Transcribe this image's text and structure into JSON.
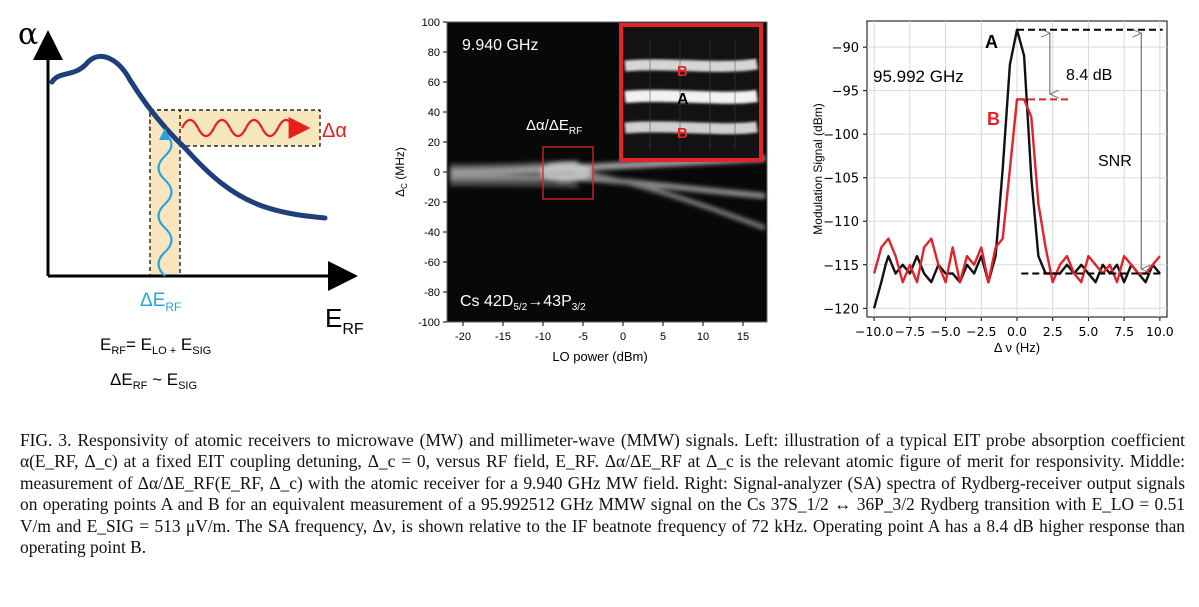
{
  "left_panel": {
    "y_axis_label": "α",
    "x_axis_label": "E",
    "x_axis_sub": "RF",
    "delta_alpha": "Δα",
    "delta_e": "ΔE",
    "delta_e_sub": "RF",
    "eq1": {
      "a": "E",
      "a_sub": "RF",
      "b": "= E",
      "b_sub": "LO +",
      "c": " E",
      "c_sub": "SIG"
    },
    "eq2": {
      "a": "ΔE",
      "a_sub": "RF",
      "b": " ~ E",
      "b_sub": "SIG"
    },
    "colors": {
      "curve": "#1f3f7a",
      "wave_out": "#e8201c",
      "wave_in": "#29a3dc",
      "box_fill": "#f8e6bf"
    }
  },
  "middle_panel": {
    "freq_label": "9.940 GHz",
    "ylabel": "Δ",
    "ylabel_sub": "C",
    "ylabel_unit": " (MHz)",
    "xlabel": "LO power (dBm)",
    "yticks": [
      "100",
      "80",
      "60",
      "40",
      "20",
      "0",
      "-20",
      "-40",
      "-60",
      "-80",
      "-100"
    ],
    "xticks": [
      "-20",
      "-15",
      "-10",
      "-5",
      "0",
      "5",
      "10",
      "15"
    ],
    "annotation": "Δα/ΔE",
    "annotation_sub": "RF",
    "inset_labels": [
      "B",
      "A",
      "B"
    ],
    "transition": {
      "a": "Cs 42D",
      "a_sub": "5/2",
      "arrow": "→",
      "b": "43P",
      "b_sub": "3/2"
    },
    "colors": {
      "inset_border": "#e0242a",
      "label_b": "#e0242a"
    }
  },
  "chart_data": {
    "type": "line",
    "title": "",
    "xlabel": "Δ ν (Hz)",
    "ylabel": "Modulation Signal (dBm)",
    "xlim": [
      -10.5,
      10.5
    ],
    "ylim": [
      -121,
      -87
    ],
    "xticks": [
      "−10.0",
      "−7.5",
      "−5.0",
      "−2.5",
      "0.0",
      "2.5",
      "5.0",
      "7.5",
      "10.0"
    ],
    "yticks": [
      "−90",
      "−95",
      "−100",
      "−105",
      "−110",
      "−115",
      "−120"
    ],
    "xtick_values": [
      -10,
      -7.5,
      -5,
      -2.5,
      0,
      2.5,
      5,
      7.5,
      10
    ],
    "ytick_values": [
      -90,
      -95,
      -100,
      -105,
      -110,
      -115,
      -120
    ],
    "grid": true,
    "freq_label": "95.992 GHz",
    "point_a": "A",
    "point_b": "B",
    "delta_label": "8.4 dB",
    "snr_label": "SNR",
    "series": [
      {
        "color": "#111111",
        "x": [
          -10,
          -9.5,
          -9.2,
          -9,
          -8.5,
          -8,
          -7.5,
          -7,
          -6.5,
          -6,
          -5.5,
          -5,
          -4.5,
          -4,
          -3.5,
          -3,
          -2.5,
          -2,
          -1.5,
          -1,
          -0.5,
          0,
          0.5,
          1,
          1.5,
          2,
          2.5,
          3,
          3.5,
          4,
          4.5,
          5,
          5.5,
          6,
          6.5,
          7,
          7.5,
          8,
          8.5,
          9,
          9.5,
          10
        ],
        "y": [
          -120,
          -117,
          -115,
          -114,
          -116,
          -115,
          -116,
          -114,
          -116,
          -117,
          -115,
          -116,
          -116,
          -117,
          -115,
          -116,
          -114,
          -117,
          -114,
          -104,
          -92,
          -88,
          -91,
          -105,
          -114,
          -116,
          -116,
          -116,
          -115,
          -116,
          -115,
          -116,
          -117,
          -115,
          -116,
          -115,
          -117,
          -115,
          -116,
          -117,
          -115,
          -116
        ]
      },
      {
        "color": "#e0242a",
        "x": [
          -10,
          -9.5,
          -9,
          -8.5,
          -8,
          -7.5,
          -7,
          -6.5,
          -6,
          -5.5,
          -5,
          -4.5,
          -4,
          -3.5,
          -3,
          -2.5,
          -2,
          -1.5,
          -1,
          -0.5,
          0,
          0.5,
          1,
          1.5,
          2,
          2.5,
          3,
          3.5,
          4,
          4.5,
          5,
          5.5,
          6,
          6.5,
          7,
          7.5,
          8,
          8.5,
          9,
          9.5,
          10
        ],
        "y": [
          -116,
          -113,
          -112,
          -114,
          -117,
          -115,
          -117,
          -113,
          -112,
          -115,
          -117,
          -113,
          -117,
          -114,
          -115,
          -113,
          -117,
          -113,
          -112,
          -104,
          -96,
          -96,
          -98,
          -108,
          -113,
          -117,
          -115,
          -114,
          -116,
          -117,
          -114,
          -115,
          -116,
          -115,
          -117,
          -114,
          -115,
          -116,
          -116,
          -115,
          -114
        ]
      }
    ],
    "colors": {
      "a": "#111111",
      "b": "#e0242a"
    }
  },
  "caption": {
    "label": "FIG. 3.",
    "text": "Responsivity of atomic receivers to microwave (MW) and millimeter-wave (MMW) signals. Left: illustration of a typical EIT probe absorption coefficient α(E_RF, Δ_c) at a fixed EIT coupling detuning, Δ_c = 0, versus RF field, E_RF.  Δα/ΔE_RF at Δ_c is the relevant atomic figure of merit for responsivity. Middle: measurement of Δα/ΔE_RF(E_RF, Δ_c) with the atomic receiver for a 9.940 GHz MW field. Right: Signal-analyzer (SA) spectra of Rydberg-receiver output signals on operating points A and B for an equivalent measurement of a  95.992512 GHz MMW signal on the Cs 37S_1/2 ↔ 36P_3/2 Rydberg transition with E_LO = 0.51 V/m and E_SIG = 513 μV/m. The SA frequency, Δν, is shown relative to the IF beatnote frequency of 72 kHz. Operating point A has a 8.4 dB higher response than operating point B."
  }
}
